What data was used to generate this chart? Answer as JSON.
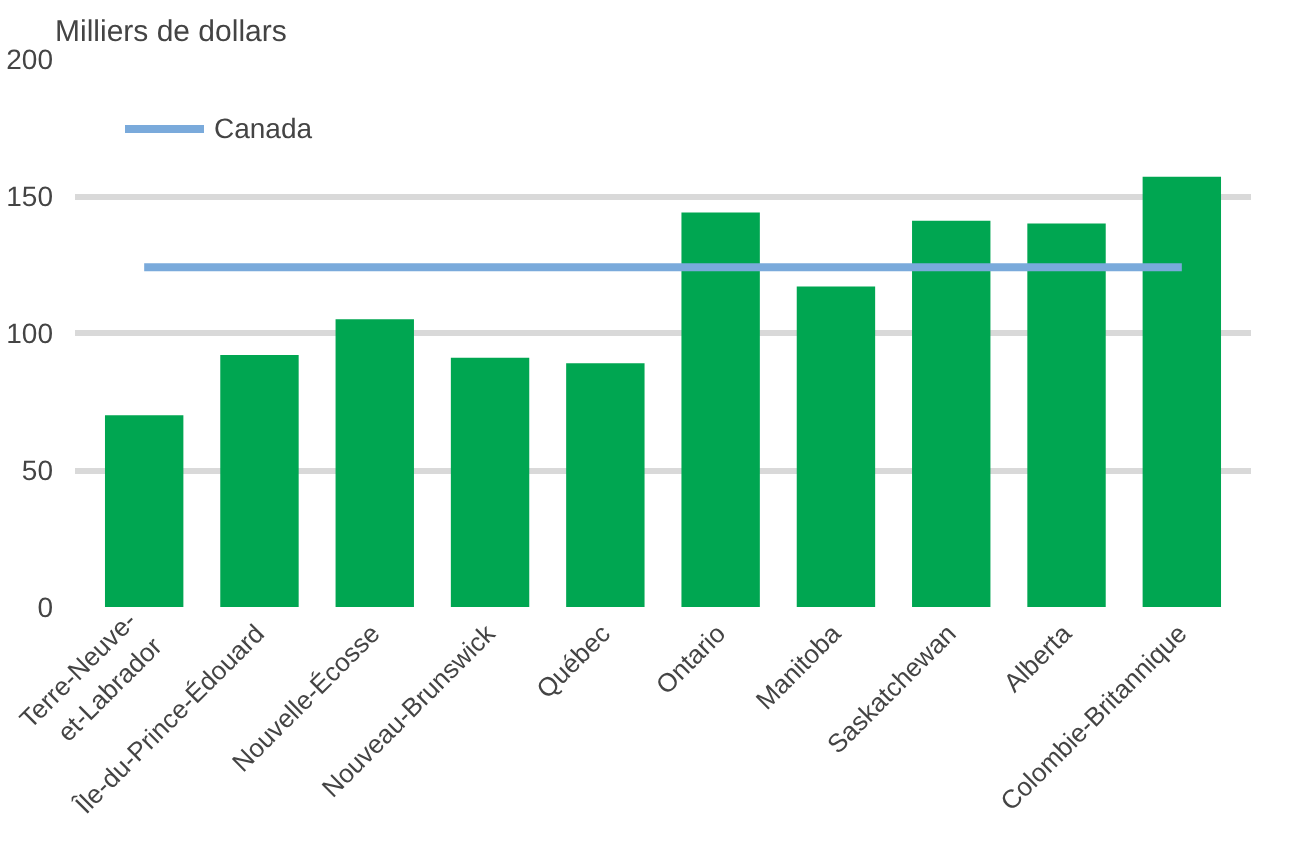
{
  "chart_data": {
    "type": "bar",
    "ylabel": "Milliers de dollars",
    "categories": [
      "Terre-Neuve-\net-Labrador",
      "Île-du-Prince-Édouard",
      "Nouvelle-Écosse",
      "Nouveau-Brunswick",
      "Québec",
      "Ontario",
      "Manitoba",
      "Saskatchewan",
      "Alberta",
      "Colombie-Britannique"
    ],
    "series": [
      {
        "color": "#00a651",
        "values": [
          70,
          92,
          105,
          91,
          89,
          144,
          117,
          141,
          140,
          157
        ]
      },
      {
        "type": "line",
        "name": "Canada",
        "color": "#7aaadb",
        "values": [
          124,
          124,
          124,
          124,
          124,
          124,
          124,
          124,
          124,
          124
        ]
      }
    ],
    "ylim": [
      0,
      200
    ],
    "yticks": [
      0,
      50,
      100,
      150,
      200
    ],
    "grid": "y",
    "legend": "top left"
  }
}
